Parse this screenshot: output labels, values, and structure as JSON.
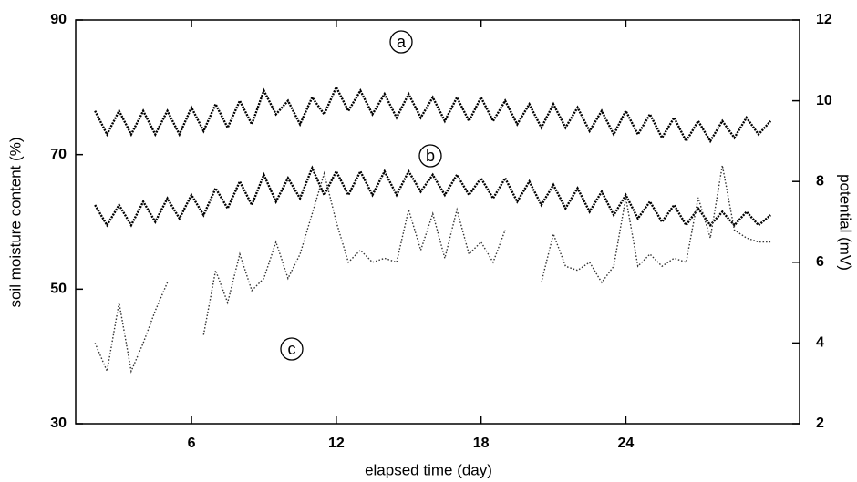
{
  "chart_data": {
    "type": "line",
    "xlabel": "elapsed time (day)",
    "ylabel": "soil moisture content (%)",
    "y2label": "potential (mV)",
    "annotations": [
      "a",
      "b",
      "c"
    ],
    "x": [
      2,
      2.5,
      3,
      3.5,
      4,
      4.5,
      5,
      5.5,
      6,
      6.5,
      7,
      7.5,
      8,
      8.5,
      9,
      9.5,
      10,
      10.5,
      11,
      11.5,
      12,
      12.5,
      13,
      13.5,
      14,
      14.5,
      15,
      15.5,
      16,
      16.5,
      17,
      17.5,
      18,
      18.5,
      19,
      19.5,
      20,
      20.5,
      21,
      21.5,
      22,
      22.5,
      23,
      23.5,
      24,
      24.5,
      25,
      25.5,
      26,
      26.5,
      27,
      27.5,
      28,
      28.5,
      29,
      29.5,
      30
    ],
    "series": [
      {
        "name": "a",
        "color": "#000000",
        "axis": "y",
        "values": [
          76.5,
          73,
          76.5,
          73,
          76.5,
          73,
          76.5,
          73,
          77,
          73.5,
          77.5,
          74,
          78,
          74.5,
          79.5,
          76,
          78,
          74.5,
          78.5,
          76,
          80,
          76.5,
          79.5,
          76,
          79,
          75.5,
          79,
          75.5,
          78.5,
          75,
          78.5,
          75,
          78.5,
          75,
          78,
          74.5,
          77.5,
          74,
          77.5,
          74,
          77,
          73.5,
          76.5,
          73,
          76.5,
          73,
          76,
          72.5,
          75.5,
          72,
          75,
          72,
          75,
          72.5,
          75.5,
          73,
          75
        ]
      },
      {
        "name": "b",
        "color": "#000000",
        "axis": "y",
        "values": [
          62.5,
          59.5,
          62.5,
          59.5,
          63,
          60,
          63.5,
          60.5,
          64,
          61,
          65,
          62,
          66,
          62.5,
          67,
          63,
          66.5,
          63.5,
          68,
          64,
          67.5,
          64,
          67.5,
          64,
          67.5,
          64,
          67.5,
          64.5,
          67,
          64,
          67,
          64,
          66.5,
          63.5,
          66.5,
          63,
          66,
          62.5,
          65.5,
          62,
          65,
          61.5,
          64.5,
          61,
          64,
          60.5,
          63,
          60,
          62.5,
          59.5,
          62,
          59.5,
          61.5,
          59.5,
          61.5,
          59.5,
          61
        ]
      },
      {
        "name": "c",
        "color": "#333333",
        "axis": "y2",
        "values": [
          4.0,
          3.3,
          5.0,
          3.3,
          4.0,
          4.8,
          5.5,
          null,
          null,
          4.2,
          5.8,
          5.0,
          6.2,
          5.3,
          5.6,
          6.5,
          5.6,
          6.2,
          7.2,
          8.2,
          7.0,
          6.0,
          6.3,
          6.0,
          6.1,
          6.0,
          7.3,
          6.3,
          7.2,
          6.1,
          7.3,
          6.2,
          6.5,
          6.0,
          6.8,
          null,
          null,
          5.5,
          6.7,
          5.9,
          5.8,
          6.0,
          5.5,
          5.9,
          7.6,
          5.9,
          6.2,
          5.9,
          6.1,
          6.0,
          7.6,
          6.6,
          8.4,
          6.8,
          6.6,
          6.5,
          6.5
        ]
      }
    ],
    "xlim": [
      1.2,
      31.2
    ],
    "xticks": [
      6,
      12,
      18,
      24
    ],
    "ylim": [
      30,
      90
    ],
    "yticks": [
      30,
      50,
      70,
      90
    ],
    "y2lim": [
      2,
      12
    ],
    "y2ticks": [
      2,
      4,
      6,
      8,
      10,
      12
    ],
    "grid": false
  }
}
